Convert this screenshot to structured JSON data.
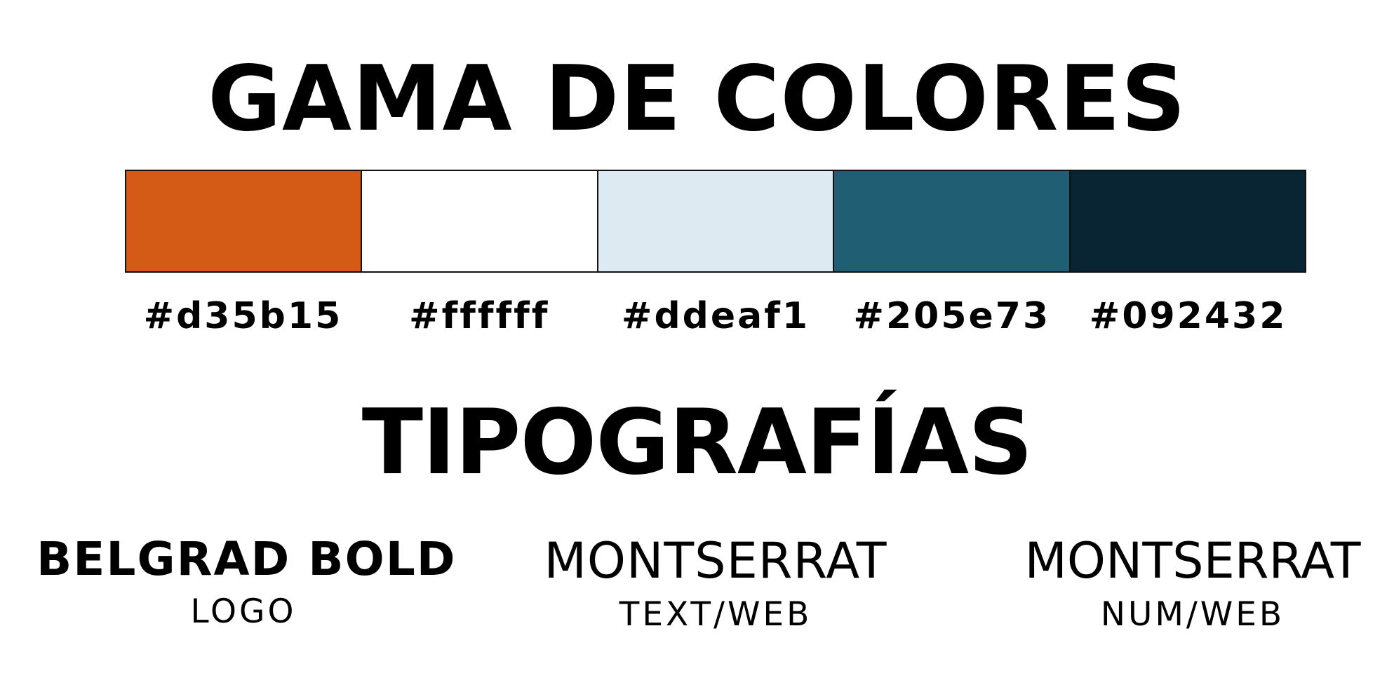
{
  "colors_section": {
    "title": "GAMA DE COLORES",
    "swatches": [
      {
        "color": "#d35b15",
        "label": "#d35b15"
      },
      {
        "color": "#ffffff",
        "label": "#ffffff"
      },
      {
        "color": "#ddeaf1",
        "label": "#ddeaf1"
      },
      {
        "color": "#205e73",
        "label": "#205e73"
      },
      {
        "color": "#092432",
        "label": "#092432"
      }
    ]
  },
  "typography_section": {
    "title": "TIPOGRAFÍAS",
    "fonts": [
      {
        "name": "BELGRAD BOLD",
        "use": "LOGO"
      },
      {
        "name": "MONTSERRAT",
        "use": "TEXT/WEB"
      },
      {
        "name": "MONTSERRAT",
        "use": "NUM/WEB"
      }
    ]
  }
}
